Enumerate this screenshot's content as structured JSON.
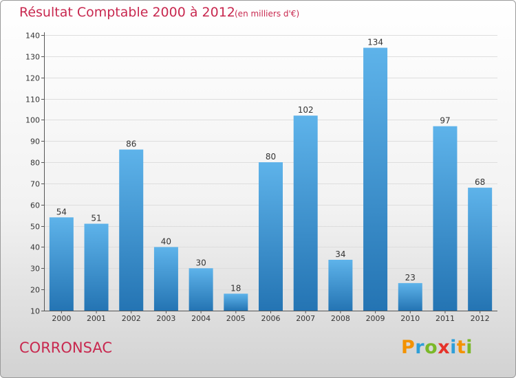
{
  "header": {
    "title": "Résultat Comptable 2000 à 2012",
    "subtitle": "(en milliers d'€)"
  },
  "footer": {
    "commune": "CORRONSAC",
    "logo_text": "Proxiti",
    "logo_colors": [
      "#f39200",
      "#2e9fd8",
      "#7ab828",
      "#e6332a",
      "#2e9fd8",
      "#f39200",
      "#7ab828"
    ]
  },
  "colors": {
    "title": "#c8284f",
    "bar_top": "#5eb3ea",
    "bar_bottom": "#2474b3",
    "grid": "#dddddd",
    "axis": "#555555"
  },
  "chart_data": {
    "type": "bar",
    "title": "Résultat Comptable 2000 à 2012",
    "subtitle": "(en milliers d'€)",
    "categories": [
      "2000",
      "2001",
      "2002",
      "2003",
      "2004",
      "2005",
      "2006",
      "2007",
      "2008",
      "2009",
      "2010",
      "2011",
      "2012"
    ],
    "values": [
      54,
      51,
      86,
      40,
      30,
      18,
      80,
      102,
      34,
      134,
      23,
      97,
      68
    ],
    "ylim": [
      10,
      140
    ],
    "yticks": [
      10,
      20,
      30,
      40,
      50,
      60,
      70,
      80,
      90,
      100,
      110,
      120,
      130,
      140
    ],
    "grid": true,
    "data_labels": true
  }
}
